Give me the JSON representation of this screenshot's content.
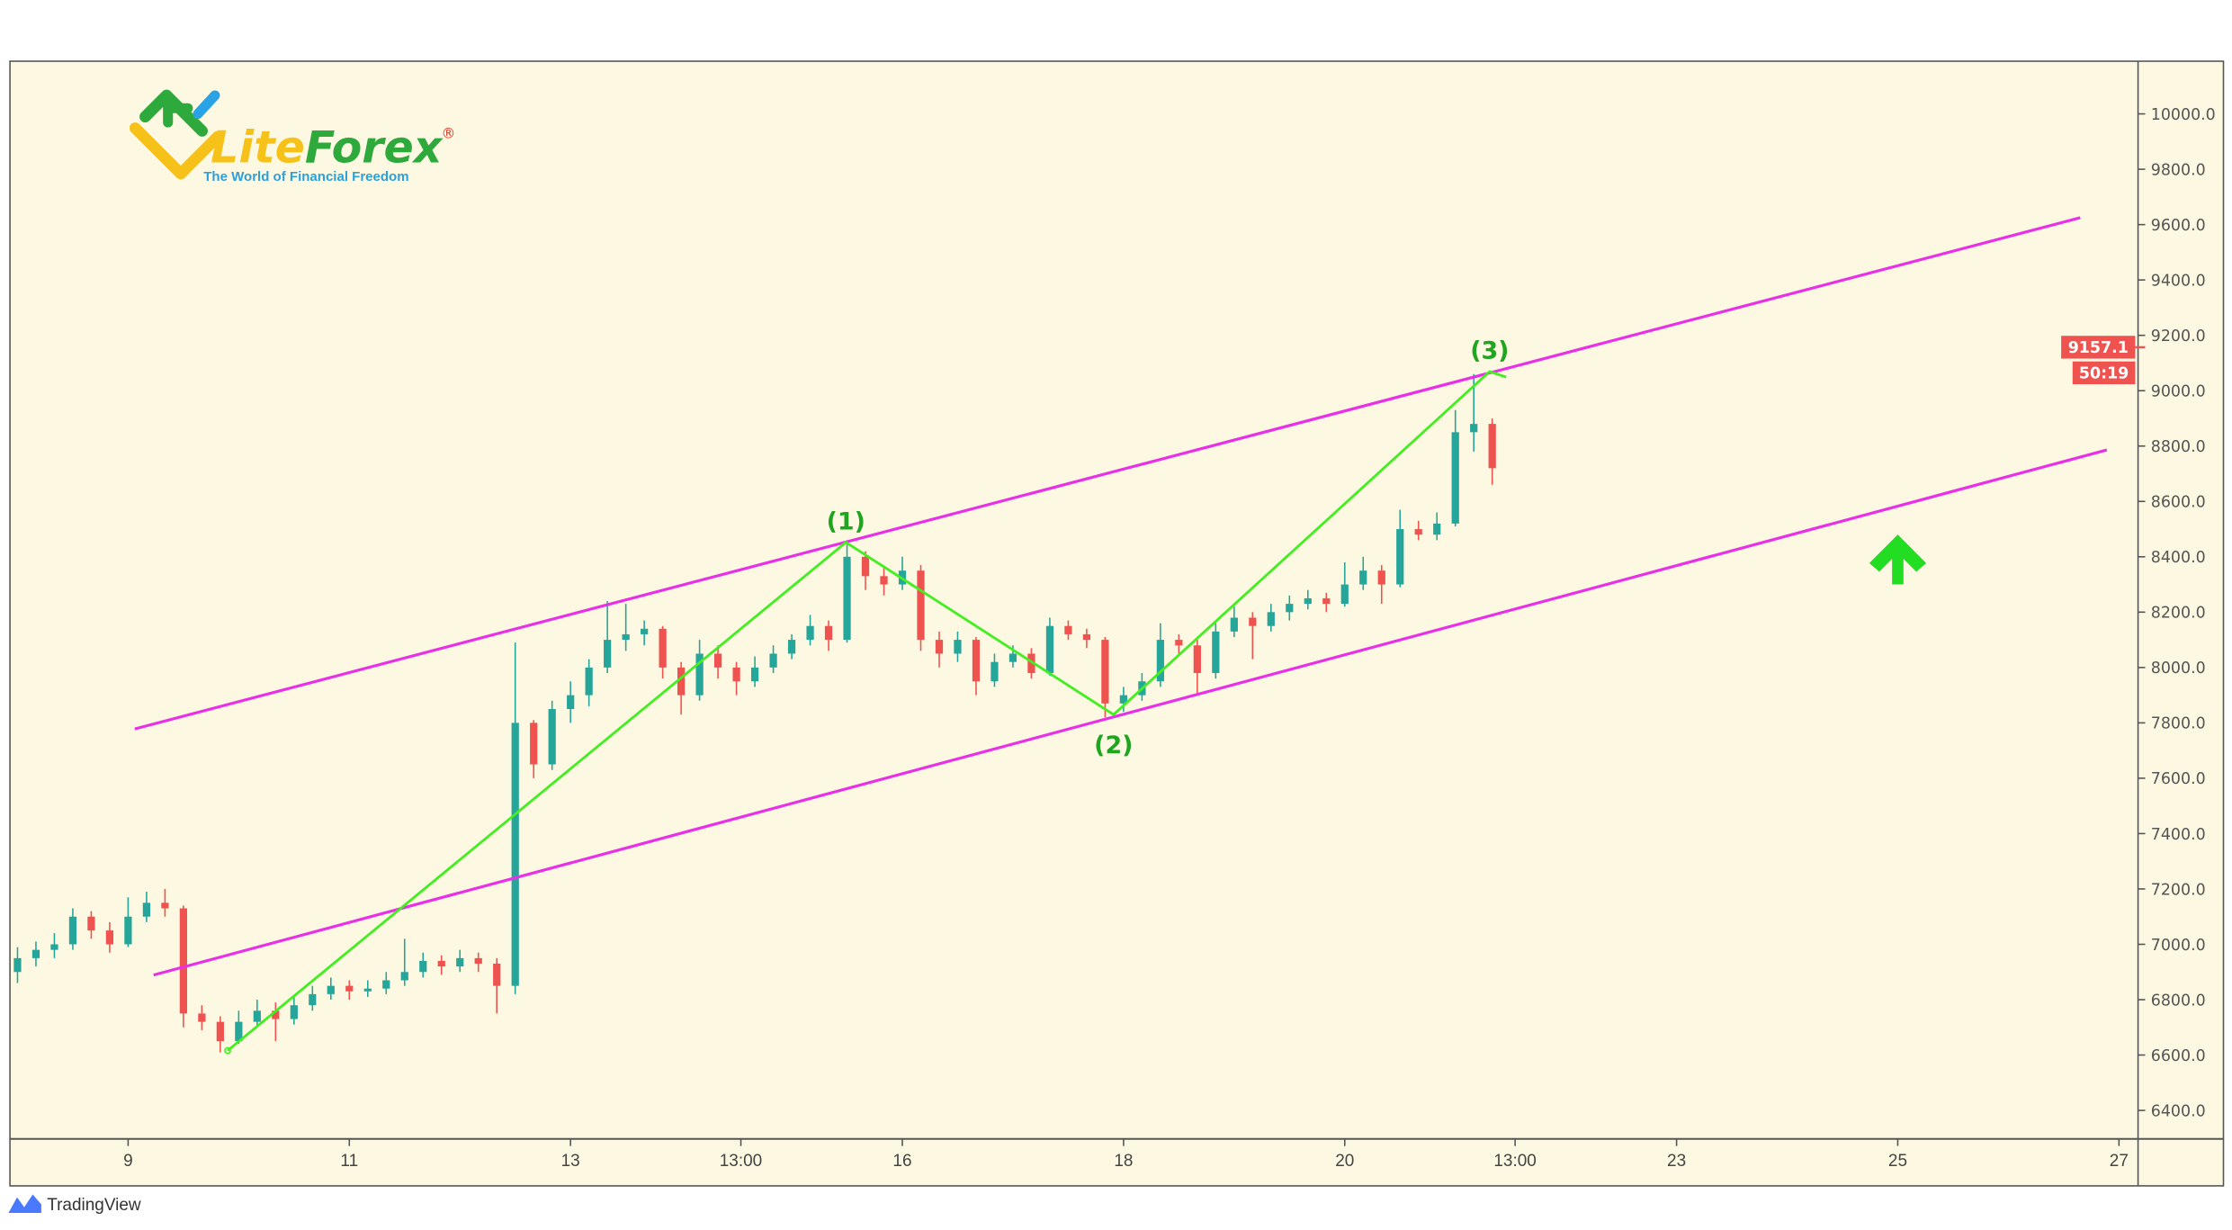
{
  "logo": {
    "part1": "Lite",
    "part2": "Forex",
    "registered": "®",
    "tagline": "The World of Financial Freedom"
  },
  "footer": {
    "brand": "TradingView"
  },
  "colors": {
    "background": "#fdf8e1",
    "up": "#26a69a",
    "down": "#ef5350",
    "channel": "#e830e8",
    "wave": "#44ee22",
    "wave_label": "#1fa51f",
    "arrow": "#22dd22",
    "price_label": "#ef5350"
  },
  "chart_data": {
    "type": "candlestick",
    "title": "",
    "ylim": [
      6300,
      10150
    ],
    "xlim": [
      7.97,
      27.2
    ],
    "grid": false,
    "y_ticks": [
      "10000.0",
      "9800.0",
      "9600.0",
      "9400.0",
      "9200.0",
      "9000.0",
      "8800.0",
      "8600.0",
      "8400.0",
      "8200.0",
      "8000.0",
      "7800.0",
      "7600.0",
      "7400.0",
      "7200.0",
      "7000.0",
      "6800.0",
      "6600.0",
      "6400.0"
    ],
    "x_ticks": [
      {
        "label": "9",
        "day": 9
      },
      {
        "label": "11",
        "day": 11
      },
      {
        "label": "13",
        "day": 13
      },
      {
        "label": "13:00",
        "day": 14.54
      },
      {
        "label": "16",
        "day": 16
      },
      {
        "label": "18",
        "day": 18
      },
      {
        "label": "20",
        "day": 20
      },
      {
        "label": "13:00",
        "day": 21.54
      },
      {
        "label": "23",
        "day": 23
      },
      {
        "label": "25",
        "day": 25
      },
      {
        "label": "27",
        "day": 27
      }
    ],
    "last_price": "9157.1",
    "countdown": "50:19",
    "candle_start_day": 8,
    "candle_interval": "4h",
    "candles_ohlc": [
      [
        6900,
        6990,
        6860,
        6950
      ],
      [
        6950,
        7010,
        6920,
        6980
      ],
      [
        6980,
        7040,
        6950,
        7000
      ],
      [
        7000,
        7130,
        6980,
        7100
      ],
      [
        7100,
        7120,
        7020,
        7050
      ],
      [
        7050,
        7080,
        6970,
        7000
      ],
      [
        7000,
        7170,
        6990,
        7100
      ],
      [
        7100,
        7190,
        7080,
        7150
      ],
      [
        7150,
        7200,
        7100,
        7130
      ],
      [
        7130,
        7140,
        6700,
        6750
      ],
      [
        6750,
        6780,
        6690,
        6720
      ],
      [
        6720,
        6740,
        6610,
        6650
      ],
      [
        6650,
        6760,
        6640,
        6720
      ],
      [
        6720,
        6800,
        6700,
        6760
      ],
      [
        6760,
        6790,
        6650,
        6730
      ],
      [
        6730,
        6810,
        6710,
        6780
      ],
      [
        6780,
        6850,
        6760,
        6820
      ],
      [
        6820,
        6880,
        6800,
        6850
      ],
      [
        6850,
        6870,
        6800,
        6830
      ],
      [
        6830,
        6870,
        6810,
        6840
      ],
      [
        6840,
        6900,
        6820,
        6870
      ],
      [
        6870,
        7020,
        6850,
        6900
      ],
      [
        6900,
        6970,
        6880,
        6940
      ],
      [
        6940,
        6960,
        6890,
        6920
      ],
      [
        6920,
        6980,
        6900,
        6950
      ],
      [
        6950,
        6970,
        6900,
        6930
      ],
      [
        6930,
        6950,
        6750,
        6850
      ],
      [
        6850,
        8090,
        6820,
        7800
      ],
      [
        7800,
        7810,
        7600,
        7650
      ],
      [
        7650,
        7880,
        7630,
        7850
      ],
      [
        7850,
        7950,
        7800,
        7900
      ],
      [
        7900,
        8030,
        7860,
        8000
      ],
      [
        8000,
        8240,
        7980,
        8100
      ],
      [
        8100,
        8230,
        8060,
        8120
      ],
      [
        8120,
        8170,
        8080,
        8140
      ],
      [
        8140,
        8150,
        7960,
        8000
      ],
      [
        8000,
        8020,
        7830,
        7900
      ],
      [
        7900,
        8100,
        7880,
        8050
      ],
      [
        8050,
        8080,
        7960,
        8000
      ],
      [
        8000,
        8020,
        7900,
        7950
      ],
      [
        7950,
        8040,
        7930,
        8000
      ],
      [
        8000,
        8080,
        7980,
        8050
      ],
      [
        8050,
        8120,
        8030,
        8100
      ],
      [
        8100,
        8190,
        8080,
        8150
      ],
      [
        8150,
        8170,
        8060,
        8100
      ],
      [
        8100,
        8460,
        8090,
        8400
      ],
      [
        8400,
        8420,
        8280,
        8330
      ],
      [
        8330,
        8360,
        8260,
        8300
      ],
      [
        8300,
        8400,
        8280,
        8350
      ],
      [
        8350,
        8370,
        8060,
        8100
      ],
      [
        8100,
        8130,
        8000,
        8050
      ],
      [
        8050,
        8130,
        8020,
        8100
      ],
      [
        8100,
        8110,
        7900,
        7950
      ],
      [
        7950,
        8050,
        7930,
        8020
      ],
      [
        8020,
        8080,
        8000,
        8050
      ],
      [
        8050,
        8070,
        7960,
        7980
      ],
      [
        7980,
        8180,
        7970,
        8150
      ],
      [
        8150,
        8170,
        8100,
        8120
      ],
      [
        8120,
        8140,
        8070,
        8100
      ],
      [
        8100,
        8110,
        7820,
        7870
      ],
      [
        7870,
        7930,
        7840,
        7900
      ],
      [
        7900,
        7980,
        7880,
        7950
      ],
      [
        7950,
        8160,
        7930,
        8100
      ],
      [
        8100,
        8120,
        8050,
        8080
      ],
      [
        8080,
        8100,
        7900,
        7980
      ],
      [
        7980,
        8160,
        7960,
        8130
      ],
      [
        8130,
        8220,
        8110,
        8180
      ],
      [
        8180,
        8200,
        8030,
        8150
      ],
      [
        8150,
        8230,
        8130,
        8200
      ],
      [
        8200,
        8260,
        8170,
        8230
      ],
      [
        8230,
        8280,
        8210,
        8250
      ],
      [
        8250,
        8270,
        8200,
        8230
      ],
      [
        8230,
        8380,
        8220,
        8300
      ],
      [
        8300,
        8400,
        8280,
        8350
      ],
      [
        8350,
        8370,
        8230,
        8300
      ],
      [
        8300,
        8570,
        8290,
        8500
      ],
      [
        8500,
        8530,
        8460,
        8480
      ],
      [
        8480,
        8560,
        8460,
        8520
      ],
      [
        8520,
        8930,
        8510,
        8850
      ],
      [
        8850,
        9060,
        8780,
        8880
      ],
      [
        8880,
        8900,
        8660,
        8720
      ]
    ],
    "channel_lines": [
      {
        "points": [
          [
            9.06,
            7778
          ],
          [
            26.65,
            9625
          ]
        ]
      },
      {
        "points": [
          [
            9.23,
            6889
          ],
          [
            26.89,
            8786
          ]
        ]
      }
    ],
    "wave_line": [
      [
        9.9,
        6616
      ],
      [
        15.49,
        8452
      ],
      [
        17.91,
        7830
      ],
      [
        21.31,
        9069
      ],
      [
        21.46,
        9049
      ]
    ],
    "wave_labels": [
      {
        "text": "(1)",
        "day": 15.49,
        "price": 8452,
        "pos": "above"
      },
      {
        "text": "(2)",
        "day": 17.91,
        "price": 7830,
        "pos": "below"
      },
      {
        "text": "(3)",
        "day": 21.31,
        "price": 9069,
        "pos": "above"
      }
    ],
    "arrow": {
      "direction": "up",
      "day": 25.0,
      "price": 8300
    }
  }
}
